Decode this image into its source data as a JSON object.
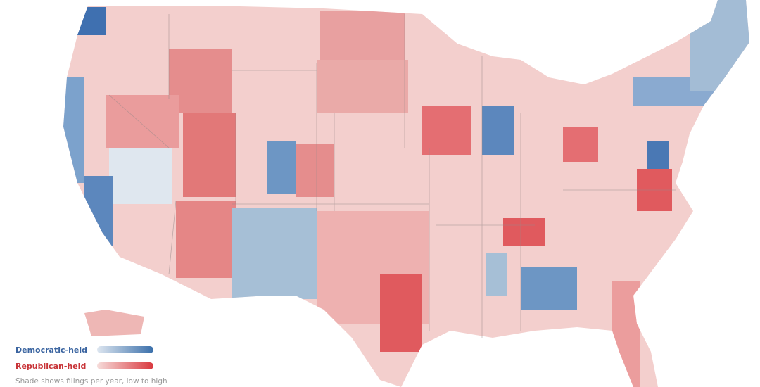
{
  "legend": {
    "items": [
      {
        "label": "Democratic-held"
      },
      {
        "label": "Republican-held"
      }
    ],
    "note": "Shade shows filings per year, low to high"
  }
}
